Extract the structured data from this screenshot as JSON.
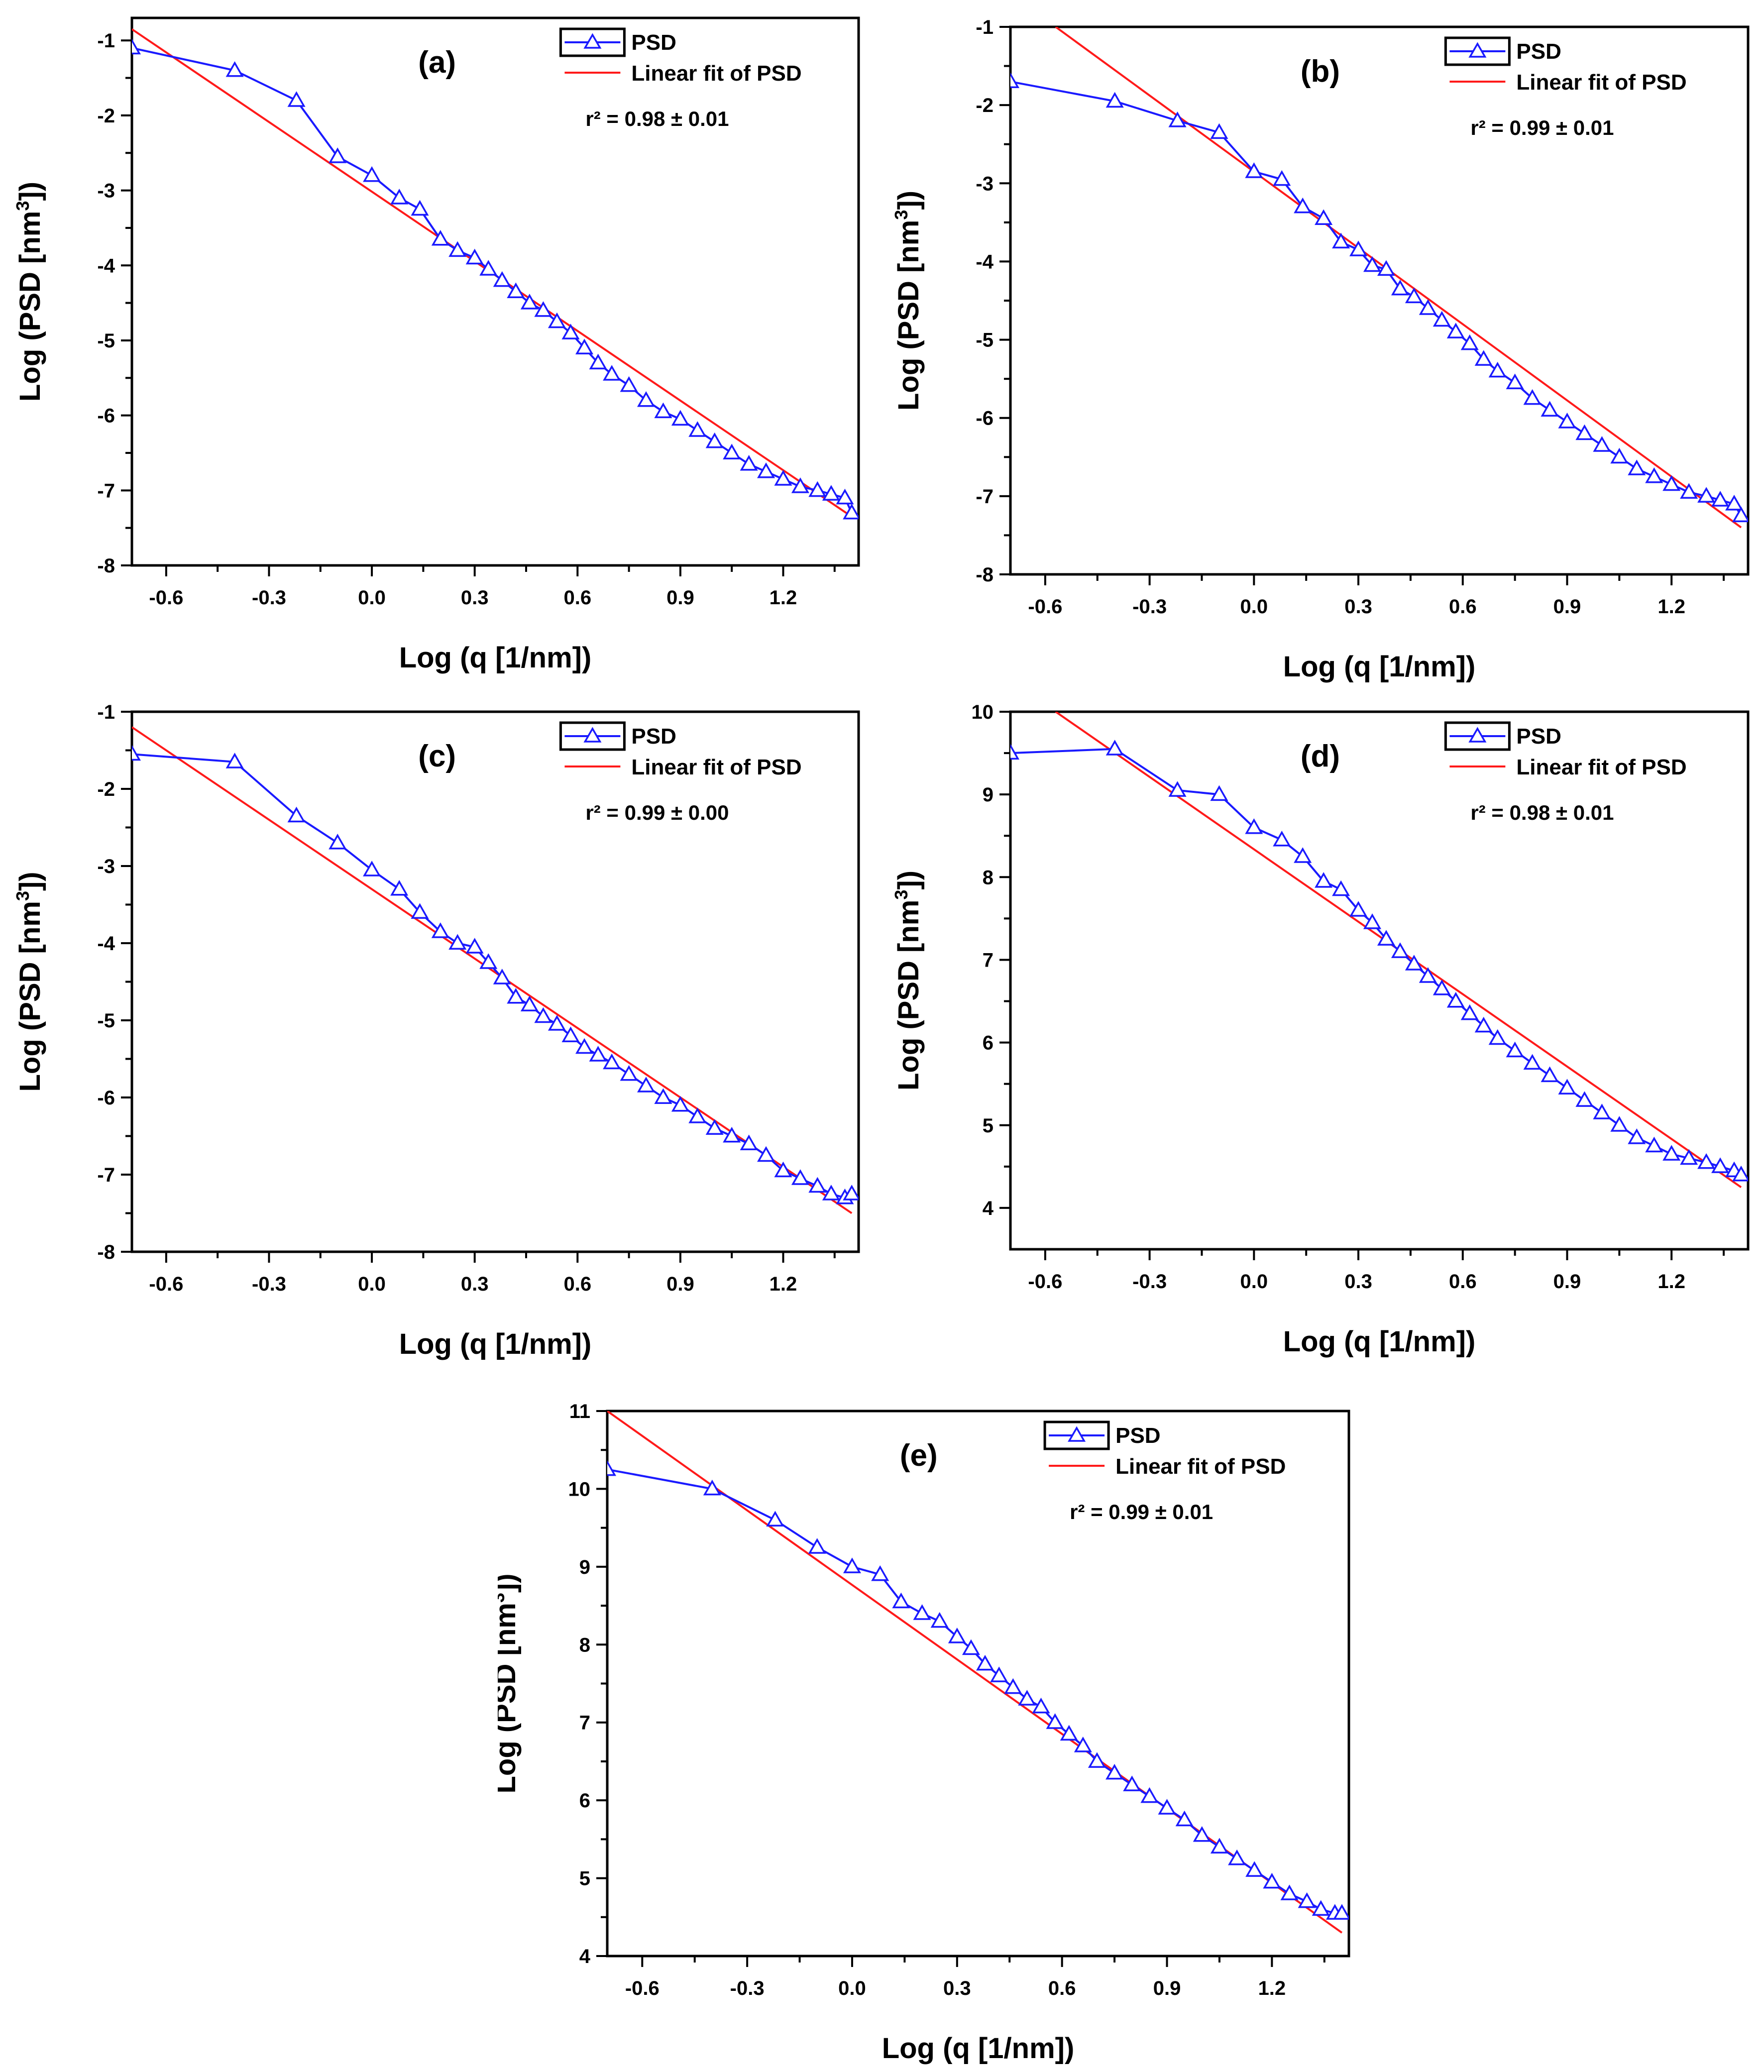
{
  "colors": {
    "psd": "#1a1aff",
    "fit": "#ff1a1a",
    "axis": "#000000",
    "background": "#ffffff"
  },
  "chart_data": [
    {
      "type": "line",
      "panel_label": "(a)",
      "xlabel": "Log (q [1/nm])",
      "ylabel_main": "Log (PSD [nm",
      "ylabel_sup": "3",
      "ylabel_end": "])",
      "xlim": [
        -0.7,
        1.42
      ],
      "ylim": [
        -8,
        -0.7
      ],
      "xticks": [
        -0.6,
        -0.3,
        0.0,
        0.3,
        0.6,
        0.9,
        1.2
      ],
      "xtick_labels": [
        "-0.6",
        "-0.3",
        "0.0",
        "0.3",
        "0.6",
        "0.9",
        "1.2"
      ],
      "yticks": [
        -8,
        -7,
        -6,
        -5,
        -4,
        -3,
        -2,
        -1
      ],
      "ytick_labels": [
        "-8",
        "-7",
        "-6",
        "-5",
        "-4",
        "-3",
        "-2",
        "-1"
      ],
      "legend": {
        "psd_label": "PSD",
        "fit_label": "Linear fit of PSD"
      },
      "r2_text": "r² = 0.98 ± 0.01",
      "series": [
        {
          "name": "PSD",
          "marker": "open-triangle",
          "x": [
            -0.7,
            -0.4,
            -0.22,
            -0.1,
            0.0,
            0.08,
            0.14,
            0.2,
            0.25,
            0.3,
            0.34,
            0.38,
            0.42,
            0.46,
            0.5,
            0.54,
            0.58,
            0.62,
            0.66,
            0.7,
            0.75,
            0.8,
            0.85,
            0.9,
            0.95,
            1.0,
            1.05,
            1.1,
            1.15,
            1.2,
            1.25,
            1.3,
            1.34,
            1.38,
            1.4
          ],
          "y": [
            -1.1,
            -1.4,
            -1.8,
            -2.55,
            -2.8,
            -3.1,
            -3.25,
            -3.65,
            -3.8,
            -3.9,
            -4.05,
            -4.2,
            -4.35,
            -4.5,
            -4.6,
            -4.75,
            -4.9,
            -5.1,
            -5.3,
            -5.45,
            -5.6,
            -5.8,
            -5.95,
            -6.05,
            -6.2,
            -6.35,
            -6.5,
            -6.65,
            -6.75,
            -6.85,
            -6.95,
            -7.0,
            -7.05,
            -7.1,
            -7.3
          ]
        },
        {
          "name": "Linear fit of PSD",
          "x": [
            -0.7,
            1.4
          ],
          "y": [
            -0.85,
            -7.35
          ]
        }
      ]
    },
    {
      "type": "line",
      "panel_label": "(b)",
      "xlabel": "Log (q [1/nm])",
      "ylabel_main": "Log (PSD [nm",
      "ylabel_sup": "3",
      "ylabel_end": "])",
      "xlim": [
        -0.7,
        1.42
      ],
      "ylim": [
        -8,
        -1
      ],
      "xticks": [
        -0.6,
        -0.3,
        0.0,
        0.3,
        0.6,
        0.9,
        1.2
      ],
      "xtick_labels": [
        "-0.6",
        "-0.3",
        "0.0",
        "0.3",
        "0.6",
        "0.9",
        "1.2"
      ],
      "yticks": [
        -8,
        -7,
        -6,
        -5,
        -4,
        -3,
        -2,
        -1
      ],
      "ytick_labels": [
        "-8",
        "-7",
        "-6",
        "-5",
        "-4",
        "-3",
        "-2",
        "-1"
      ],
      "legend": {
        "psd_label": "PSD",
        "fit_label": "Linear fit of PSD"
      },
      "r2_text": "r² = 0.99 ± 0.01",
      "series": [
        {
          "name": "PSD",
          "marker": "open-triangle",
          "x": [
            -0.7,
            -0.4,
            -0.22,
            -0.1,
            0.0,
            0.08,
            0.14,
            0.2,
            0.25,
            0.3,
            0.34,
            0.38,
            0.42,
            0.46,
            0.5,
            0.54,
            0.58,
            0.62,
            0.66,
            0.7,
            0.75,
            0.8,
            0.85,
            0.9,
            0.95,
            1.0,
            1.05,
            1.1,
            1.15,
            1.2,
            1.25,
            1.3,
            1.34,
            1.38,
            1.4
          ],
          "y": [
            -1.7,
            -1.95,
            -2.2,
            -2.35,
            -2.85,
            -2.95,
            -3.3,
            -3.45,
            -3.75,
            -3.85,
            -4.05,
            -4.1,
            -4.35,
            -4.45,
            -4.6,
            -4.75,
            -4.9,
            -5.05,
            -5.25,
            -5.4,
            -5.55,
            -5.75,
            -5.9,
            -6.05,
            -6.2,
            -6.35,
            -6.5,
            -6.65,
            -6.75,
            -6.85,
            -6.95,
            -7.0,
            -7.05,
            -7.1,
            -7.25
          ]
        },
        {
          "name": "Linear fit of PSD",
          "x": [
            -0.57,
            1.4
          ],
          "y": [
            -1.0,
            -7.4
          ]
        }
      ]
    },
    {
      "type": "line",
      "panel_label": "(c)",
      "xlabel": "Log (q [1/nm])",
      "ylabel_main": "Log (PSD [nm",
      "ylabel_sup": "3",
      "ylabel_end": "])",
      "xlim": [
        -0.7,
        1.42
      ],
      "ylim": [
        -8,
        -1
      ],
      "xticks": [
        -0.6,
        -0.3,
        0.0,
        0.3,
        0.6,
        0.9,
        1.2
      ],
      "xtick_labels": [
        "-0.6",
        "-0.3",
        "0.0",
        "0.3",
        "0.6",
        "0.9",
        "1.2"
      ],
      "yticks": [
        -8,
        -7,
        -6,
        -5,
        -4,
        -3,
        -2,
        -1
      ],
      "ytick_labels": [
        "-8",
        "-7",
        "-6",
        "-5",
        "-4",
        "-3",
        "-2",
        "-1"
      ],
      "legend": {
        "psd_label": "PSD",
        "fit_label": "Linear fit of PSD"
      },
      "r2_text": "r² = 0.99 ± 0.00",
      "series": [
        {
          "name": "PSD",
          "marker": "open-triangle",
          "x": [
            -0.7,
            -0.4,
            -0.22,
            -0.1,
            0.0,
            0.08,
            0.14,
            0.2,
            0.25,
            0.3,
            0.34,
            0.38,
            0.42,
            0.46,
            0.5,
            0.54,
            0.58,
            0.62,
            0.66,
            0.7,
            0.75,
            0.8,
            0.85,
            0.9,
            0.95,
            1.0,
            1.05,
            1.1,
            1.15,
            1.2,
            1.25,
            1.3,
            1.34,
            1.38,
            1.4
          ],
          "y": [
            -1.55,
            -1.65,
            -2.35,
            -2.7,
            -3.05,
            -3.3,
            -3.6,
            -3.85,
            -4.0,
            -4.05,
            -4.25,
            -4.45,
            -4.7,
            -4.8,
            -4.95,
            -5.05,
            -5.2,
            -5.35,
            -5.45,
            -5.55,
            -5.7,
            -5.85,
            -6.0,
            -6.1,
            -6.25,
            -6.4,
            -6.5,
            -6.6,
            -6.75,
            -6.95,
            -7.05,
            -7.15,
            -7.25,
            -7.3,
            -7.25
          ]
        },
        {
          "name": "Linear fit of PSD",
          "x": [
            -0.7,
            1.4
          ],
          "y": [
            -1.2,
            -7.5
          ]
        }
      ]
    },
    {
      "type": "line",
      "panel_label": "(d)",
      "xlabel": "Log (q [1/nm])",
      "ylabel_main": "Log (PSD [nm",
      "ylabel_sup": "3",
      "ylabel_end": "])",
      "xlim": [
        -0.7,
        1.42
      ],
      "ylim": [
        3.5,
        10
      ],
      "xticks": [
        -0.6,
        -0.3,
        0.0,
        0.3,
        0.6,
        0.9,
        1.2
      ],
      "xtick_labels": [
        "-0.6",
        "-0.3",
        "0.0",
        "0.3",
        "0.6",
        "0.9",
        "1.2"
      ],
      "yticks": [
        4,
        5,
        6,
        7,
        8,
        9,
        10
      ],
      "ytick_labels": [
        "4",
        "5",
        "6",
        "7",
        "8",
        "9",
        "10"
      ],
      "legend": {
        "psd_label": "PSD",
        "fit_label": "Linear fit of PSD"
      },
      "r2_text": "r² = 0.98 ± 0.01",
      "series": [
        {
          "name": "PSD",
          "marker": "open-triangle",
          "x": [
            -0.7,
            -0.4,
            -0.22,
            -0.1,
            0.0,
            0.08,
            0.14,
            0.2,
            0.25,
            0.3,
            0.34,
            0.38,
            0.42,
            0.46,
            0.5,
            0.54,
            0.58,
            0.62,
            0.66,
            0.7,
            0.75,
            0.8,
            0.85,
            0.9,
            0.95,
            1.0,
            1.05,
            1.1,
            1.15,
            1.2,
            1.25,
            1.3,
            1.34,
            1.38,
            1.4
          ],
          "y": [
            9.5,
            9.55,
            9.05,
            9.0,
            8.6,
            8.45,
            8.25,
            7.95,
            7.85,
            7.6,
            7.45,
            7.25,
            7.1,
            6.95,
            6.8,
            6.65,
            6.5,
            6.35,
            6.2,
            6.05,
            5.9,
            5.75,
            5.6,
            5.45,
            5.3,
            5.15,
            5.0,
            4.85,
            4.75,
            4.65,
            4.6,
            4.55,
            4.5,
            4.45,
            4.4
          ]
        },
        {
          "name": "Linear fit of PSD",
          "x": [
            -0.57,
            1.4
          ],
          "y": [
            10.0,
            4.25
          ]
        }
      ]
    },
    {
      "type": "line",
      "panel_label": "(e)",
      "xlabel": "Log (q [1/nm])",
      "ylabel_main": "Log (PSD [nm",
      "ylabel_sup": "3",
      "ylabel_end": "])",
      "xlim": [
        -0.7,
        1.42
      ],
      "ylim": [
        4,
        11
      ],
      "xticks": [
        -0.6,
        -0.3,
        0.0,
        0.3,
        0.6,
        0.9,
        1.2
      ],
      "xtick_labels": [
        "-0.6",
        "-0.3",
        "0.0",
        "0.3",
        "0.6",
        "0.9",
        "1.2"
      ],
      "yticks": [
        4,
        5,
        6,
        7,
        8,
        9,
        10,
        11
      ],
      "ytick_labels": [
        "4",
        "5",
        "6",
        "7",
        "8",
        "9",
        "10",
        "11"
      ],
      "legend": {
        "psd_label": "PSD",
        "fit_label": "Linear fit of PSD"
      },
      "r2_text": "r² = 0.99 ± 0.01",
      "series": [
        {
          "name": "PSD",
          "marker": "open-triangle",
          "x": [
            -0.7,
            -0.4,
            -0.22,
            -0.1,
            0.0,
            0.08,
            0.14,
            0.2,
            0.25,
            0.3,
            0.34,
            0.38,
            0.42,
            0.46,
            0.5,
            0.54,
            0.58,
            0.62,
            0.66,
            0.7,
            0.75,
            0.8,
            0.85,
            0.9,
            0.95,
            1.0,
            1.05,
            1.1,
            1.15,
            1.2,
            1.25,
            1.3,
            1.34,
            1.38,
            1.4
          ],
          "y": [
            10.25,
            10.0,
            9.6,
            9.25,
            9.0,
            8.9,
            8.55,
            8.4,
            8.3,
            8.1,
            7.95,
            7.75,
            7.6,
            7.45,
            7.3,
            7.2,
            7.0,
            6.85,
            6.7,
            6.5,
            6.35,
            6.2,
            6.05,
            5.9,
            5.75,
            5.55,
            5.4,
            5.25,
            5.1,
            4.95,
            4.8,
            4.7,
            4.6,
            4.55,
            4.55
          ]
        },
        {
          "name": "Linear fit of PSD",
          "x": [
            -0.7,
            1.4
          ],
          "y": [
            11.0,
            4.3
          ]
        }
      ]
    }
  ]
}
